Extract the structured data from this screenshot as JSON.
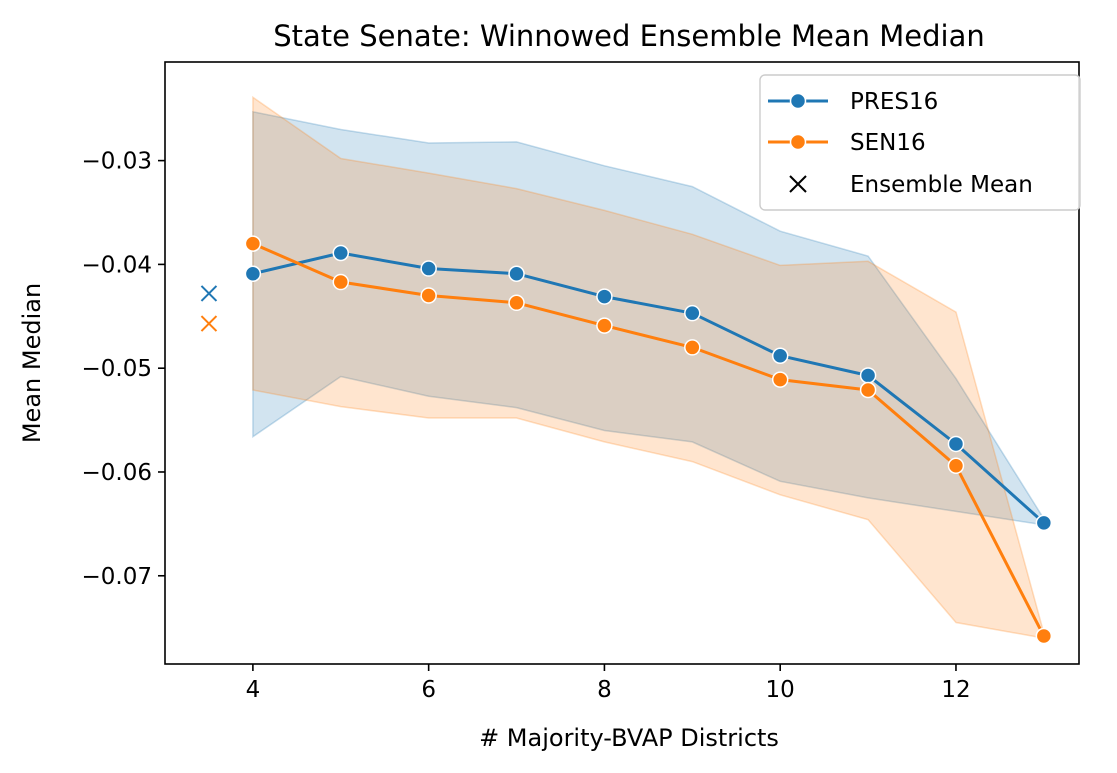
{
  "chart_data": {
    "type": "line",
    "title": "State Senate: Winnowed Ensemble Mean Median",
    "xlabel": "# Majority-BVAP Districts",
    "ylabel": "Mean Median",
    "xlim": [
      3.0,
      13.4
    ],
    "ylim": [
      -0.0785,
      -0.0205
    ],
    "xticks": [
      4,
      6,
      8,
      10,
      12
    ],
    "xtick_labels": [
      "4",
      "6",
      "8",
      "10",
      "12"
    ],
    "yticks": [
      -0.03,
      -0.04,
      -0.05,
      -0.06,
      -0.07
    ],
    "ytick_labels": [
      "−0.03",
      "−0.04",
      "−0.05",
      "−0.06",
      "−0.07"
    ],
    "grid": false,
    "legend_position": "top-right",
    "legend": [
      "PRES16",
      "SEN16",
      "Ensemble Mean"
    ],
    "series": [
      {
        "name": "PRES16",
        "color": "#1f77b4",
        "x": [
          4,
          5,
          6,
          7,
          8,
          9,
          10,
          11,
          12,
          13
        ],
        "y": [
          -0.0409,
          -0.0389,
          -0.0404,
          -0.0409,
          -0.0431,
          -0.0447,
          -0.0488,
          -0.0507,
          -0.0573,
          -0.0649
        ],
        "band_upper": [
          -0.0253,
          -0.027,
          -0.0283,
          -0.0282,
          -0.0305,
          -0.0325,
          -0.0368,
          -0.0392,
          -0.051,
          -0.0645
        ],
        "band_lower": [
          -0.0566,
          -0.0508,
          -0.0527,
          -0.0538,
          -0.056,
          -0.0571,
          -0.0609,
          -0.0625,
          -0.0638,
          -0.0651
        ]
      },
      {
        "name": "SEN16",
        "color": "#ff7f0e",
        "x": [
          4,
          5,
          6,
          7,
          8,
          9,
          10,
          11,
          12,
          13
        ],
        "y": [
          -0.038,
          -0.0417,
          -0.043,
          -0.0437,
          -0.0459,
          -0.048,
          -0.0511,
          -0.0521,
          -0.0594,
          -0.0758
        ],
        "band_upper": [
          -0.0239,
          -0.0298,
          -0.0312,
          -0.0327,
          -0.0348,
          -0.0371,
          -0.0401,
          -0.0397,
          -0.0446,
          -0.0755
        ],
        "band_lower": [
          -0.0521,
          -0.0537,
          -0.0548,
          -0.0548,
          -0.0571,
          -0.059,
          -0.0622,
          -0.0646,
          -0.0745,
          -0.076
        ]
      }
    ],
    "ensemble_mean": [
      {
        "series": "PRES16",
        "x": 3.5,
        "y": -0.0428,
        "color": "#1f77b4"
      },
      {
        "series": "SEN16",
        "x": 3.5,
        "y": -0.0457,
        "color": "#ff7f0e"
      }
    ]
  }
}
